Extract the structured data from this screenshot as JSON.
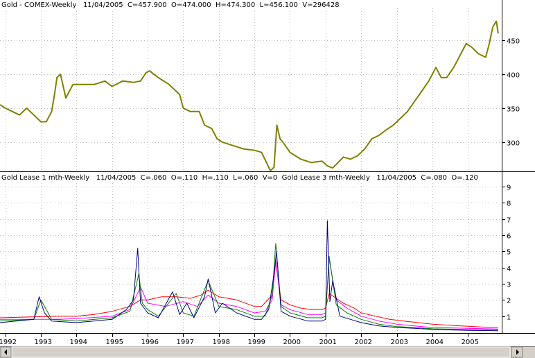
{
  "panels": {
    "top_title": "Gold - COMEX-Weekly   11/04/2005  C=457.900  O=474.000  H=474.300  L=456.100  V=296428",
    "bottom_title": "Gold Lease 1 mth-Weekly   11/04/2005  C=.060  O=.110  H=.110  L=.060  V=0  Gold Lease 3 mth-Weekly   11/04/2005  C=.080  O=.120"
  },
  "colors": {
    "gold": "#808000",
    "lease_red": "#ff0000",
    "lease_magenta": "#ff00ff",
    "lease_green": "#008000",
    "lease_navy": "#000080",
    "grid": "#c0c0c0",
    "scrollbar": "#d4d0c8"
  },
  "scrollbar": {
    "left_arrow_icon": "arrow-left-icon",
    "right_arrow_icon": "arrow-right-icon"
  },
  "chart_data": [
    {
      "type": "line",
      "x_range": [
        1991.85,
        2005.95
      ],
      "ylim": [
        258,
        495
      ],
      "yticks": [
        300,
        350,
        400,
        450
      ],
      "ytick_labels": [
        "300",
        "350",
        "400",
        "450"
      ],
      "grid": true,
      "series": [
        {
          "color": "#808000",
          "x": [
            1991.85,
            1992.0,
            1992.2,
            1992.4,
            1992.6,
            1992.8,
            1993.0,
            1993.15,
            1993.3,
            1993.38,
            1993.45,
            1993.55,
            1993.7,
            1993.9,
            1994.2,
            1994.5,
            1994.8,
            1995.0,
            1995.3,
            1995.6,
            1995.8,
            1995.95,
            1996.05,
            1996.3,
            1996.6,
            1996.9,
            1997.0,
            1997.2,
            1997.45,
            1997.6,
            1997.8,
            1997.95,
            1998.1,
            1998.4,
            1998.7,
            1999.0,
            1999.2,
            1999.45,
            1999.55,
            1999.63,
            1999.72,
            1999.8,
            2000.0,
            2000.3,
            2000.6,
            2000.9,
            2001.05,
            2001.2,
            2001.35,
            2001.5,
            2001.7,
            2001.9,
            2002.1,
            2002.3,
            2002.5,
            2002.7,
            2002.9,
            2003.1,
            2003.3,
            2003.5,
            2003.7,
            2003.9,
            2004.1,
            2004.25,
            2004.4,
            2004.6,
            2004.8,
            2004.95,
            2005.1,
            2005.3,
            2005.5,
            2005.6,
            2005.7,
            2005.8,
            2005.85
          ],
          "values": [
            355,
            350,
            345,
            340,
            350,
            340,
            330,
            330,
            345,
            370,
            395,
            400,
            365,
            385,
            385,
            385,
            390,
            382,
            390,
            388,
            390,
            402,
            405,
            395,
            385,
            370,
            350,
            345,
            345,
            325,
            320,
            305,
            300,
            295,
            290,
            288,
            285,
            258,
            263,
            325,
            305,
            300,
            285,
            275,
            270,
            272,
            265,
            262,
            270,
            278,
            275,
            280,
            290,
            305,
            310,
            318,
            325,
            335,
            345,
            360,
            375,
            390,
            410,
            395,
            395,
            410,
            430,
            445,
            440,
            430,
            425,
            445,
            470,
            478,
            460
          ]
        }
      ]
    },
    {
      "type": "line",
      "x_range": [
        1991.85,
        2005.95
      ],
      "ylim": [
        0,
        9.3
      ],
      "yticks": [
        1,
        2,
        3,
        4,
        5,
        6,
        7,
        8,
        9
      ],
      "ytick_labels": [
        "1",
        "2",
        "3",
        "4",
        "5",
        "6",
        "7",
        "8",
        "9"
      ],
      "xticks": [
        1992,
        1993,
        1994,
        1995,
        1996,
        1997,
        1998,
        1999,
        2000,
        2001,
        2002,
        2003,
        2004,
        2005
      ],
      "xtick_labels": [
        "1992",
        "1993",
        "1994",
        "1995",
        "1996",
        "1997",
        "1998",
        "1999",
        "2000",
        "2001",
        "2002",
        "2003",
        "2004",
        "2005"
      ],
      "grid": true,
      "series": [
        {
          "color": "#ff0000",
          "x": [
            1991.85,
            1993.5,
            1994.0,
            1994.5,
            1995.0,
            1995.5,
            1995.8,
            1996.0,
            1996.4,
            1996.8,
            1997.2,
            1997.5,
            1997.7,
            1998.0,
            1998.5,
            1999.0,
            1999.2,
            1999.5,
            1999.6,
            1999.75,
            2000.0,
            2000.3,
            2000.6,
            2000.9,
            2001.0,
            2001.1,
            2001.3,
            2001.5,
            2001.8,
            2002.0,
            2002.4,
            2002.8,
            2003.2,
            2003.6,
            2004.0,
            2004.4,
            2004.8,
            2005.2,
            2005.6,
            2005.85
          ],
          "values": [
            0.9,
            1.0,
            1.0,
            1.1,
            1.3,
            1.6,
            2.0,
            2.0,
            2.2,
            2.2,
            2.1,
            2.3,
            2.6,
            2.2,
            2.0,
            1.6,
            1.6,
            2.3,
            4.3,
            2.0,
            1.7,
            1.5,
            1.4,
            1.4,
            1.5,
            2.4,
            2.1,
            1.8,
            1.5,
            1.2,
            1.0,
            0.8,
            0.7,
            0.6,
            0.5,
            0.45,
            0.4,
            0.35,
            0.3,
            0.3
          ]
        },
        {
          "color": "#ff00ff",
          "x": [
            1991.85,
            1993.5,
            1994.0,
            1995.0,
            1995.5,
            1995.8,
            1996.0,
            1996.5,
            1997.0,
            1997.4,
            1997.7,
            1998.0,
            1998.5,
            1999.0,
            1999.3,
            1999.5,
            1999.6,
            1999.75,
            2000.0,
            2000.5,
            2000.9,
            2001.0,
            2001.1,
            2001.3,
            2001.6,
            2002.0,
            2002.5,
            2003.0,
            2003.5,
            2004.0,
            2005.0,
            2005.85
          ],
          "values": [
            0.8,
            0.8,
            0.85,
            1.0,
            1.4,
            2.8,
            1.8,
            1.6,
            1.9,
            1.6,
            2.3,
            1.8,
            1.6,
            1.2,
            1.3,
            2.0,
            4.5,
            1.7,
            1.4,
            1.1,
            1.1,
            1.2,
            4.5,
            2.0,
            1.5,
            1.0,
            0.7,
            0.5,
            0.4,
            0.3,
            0.25,
            0.2
          ]
        },
        {
          "color": "#008000",
          "x": [
            1991.85,
            1992.8,
            1993.0,
            1993.3,
            1994.0,
            1995.0,
            1995.5,
            1995.75,
            1995.85,
            1996.0,
            1996.3,
            1996.8,
            1997.0,
            1997.3,
            1997.7,
            1998.0,
            1998.5,
            1999.0,
            1999.3,
            1999.5,
            1999.6,
            1999.75,
            2000.0,
            2000.5,
            2000.9,
            2001.0,
            2001.1,
            2001.3,
            2001.6,
            2002.0,
            2002.5,
            2003.0,
            2003.5,
            2004.0,
            2005.0,
            2005.85
          ],
          "values": [
            0.7,
            0.8,
            2.0,
            0.8,
            0.7,
            0.9,
            1.3,
            3.6,
            1.8,
            1.4,
            1.0,
            2.4,
            1.2,
            1.0,
            3.2,
            1.6,
            1.4,
            1.0,
            1.0,
            2.3,
            5.5,
            1.6,
            1.2,
            0.9,
            0.9,
            1.0,
            4.7,
            1.7,
            1.2,
            0.8,
            0.5,
            0.35,
            0.3,
            0.22,
            0.18,
            0.15
          ]
        },
        {
          "color": "#000080",
          "x": [
            1991.85,
            1992.8,
            1992.95,
            1993.1,
            1993.3,
            1994.0,
            1995.0,
            1995.4,
            1995.6,
            1995.72,
            1995.8,
            1996.0,
            1996.3,
            1996.7,
            1996.9,
            1997.1,
            1997.3,
            1997.6,
            1997.7,
            1997.9,
            1998.1,
            1998.5,
            1999.0,
            1999.2,
            1999.4,
            1999.55,
            1999.62,
            1999.75,
            2000.0,
            2000.5,
            2000.9,
            2001.0,
            2001.05,
            2001.12,
            2001.2,
            2001.4,
            2001.7,
            2002.0,
            2002.5,
            2003.0,
            2003.5,
            2004.0,
            2004.5,
            2005.0,
            2005.85
          ],
          "values": [
            0.6,
            0.8,
            2.2,
            1.2,
            0.7,
            0.6,
            0.8,
            1.4,
            2.0,
            5.2,
            1.8,
            1.2,
            0.9,
            2.5,
            1.1,
            1.8,
            0.9,
            2.2,
            3.3,
            1.2,
            1.8,
            1.2,
            0.8,
            0.8,
            1.4,
            3.6,
            5.0,
            1.3,
            1.0,
            0.7,
            0.7,
            0.8,
            6.9,
            1.9,
            3.2,
            1.0,
            0.8,
            0.6,
            0.4,
            0.3,
            0.25,
            0.18,
            0.15,
            0.12,
            0.1
          ]
        }
      ]
    }
  ]
}
